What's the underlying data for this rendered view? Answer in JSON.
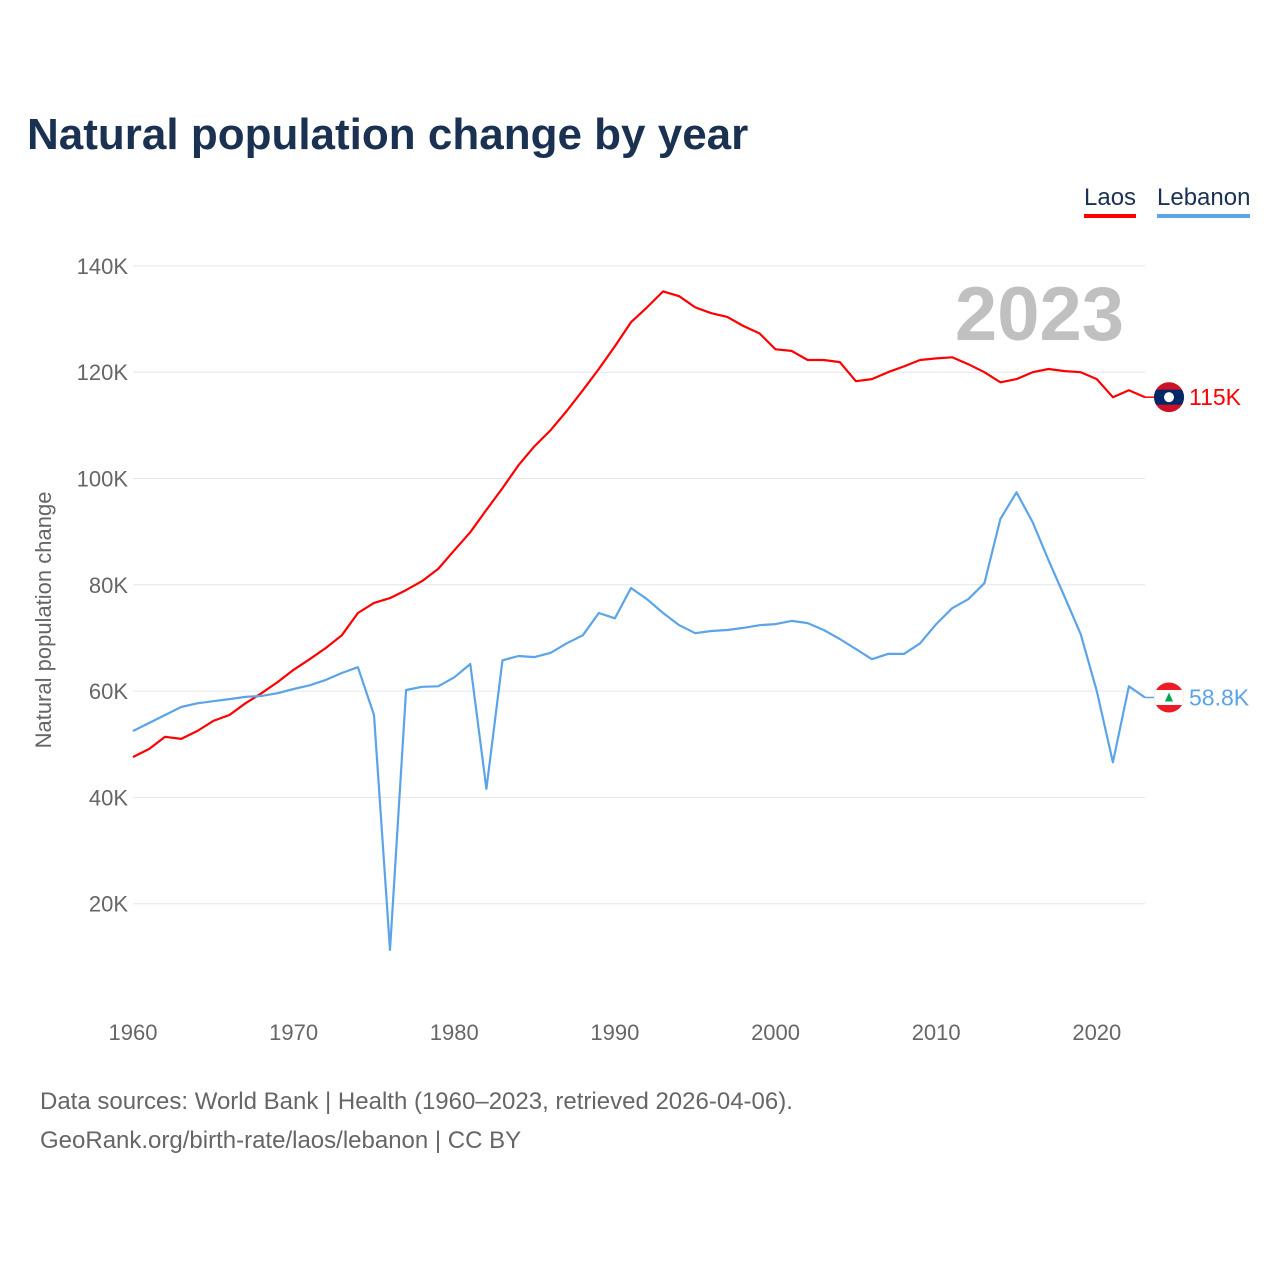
{
  "title": "Natural population change by year",
  "year_watermark": "2023",
  "footer": {
    "line1": "Data sources: World Bank | Health (1960–2023, retrieved 2026-04-06).",
    "line2": "GeoRank.org/birth-rate/laos/lebanon | CC BY"
  },
  "chart_data": {
    "type": "line",
    "title": "Natural population change by year",
    "xlabel": "",
    "ylabel": "Natural population change",
    "xlim": [
      1960,
      2023
    ],
    "ylim": [
      0,
      145000
    ],
    "grid": true,
    "legend_position": "top-right",
    "x_ticks": [
      1960,
      1970,
      1980,
      1990,
      2000,
      2010,
      2020
    ],
    "x_tick_labels": [
      "1960",
      "1970",
      "1980",
      "1990",
      "2000",
      "2010",
      "2020"
    ],
    "y_ticks": [
      20000,
      40000,
      60000,
      80000,
      100000,
      120000,
      140000
    ],
    "y_tick_labels": [
      "20K",
      "40K",
      "60K",
      "80K",
      "100K",
      "120K",
      "140K"
    ],
    "x_start": 1960,
    "series": [
      {
        "name": "Laos",
        "color": "#ff0000",
        "end_label": "115K",
        "flag": "laos-flag",
        "values": [
          47.6,
          49.1,
          51.4,
          51.0,
          52.5,
          54.4,
          55.5,
          57.7,
          59.6,
          61.7,
          64.0,
          66.0,
          68.1,
          70.5,
          74.7,
          76.6,
          77.5,
          79.0,
          80.7,
          83.0,
          86.5,
          89.9,
          94.1,
          98.2,
          102.5,
          106.1,
          109.1,
          112.7,
          116.6,
          120.6,
          124.9,
          129.4,
          132.2,
          135.2,
          134.3,
          132.2,
          131.1,
          130.4,
          128.7,
          127.3,
          124.3,
          124.0,
          122.3,
          122.3,
          121.9,
          118.3,
          118.7,
          120.0,
          121.1,
          122.3,
          122.6,
          122.8,
          121.5,
          120.0,
          118.1,
          118.7,
          120.0,
          120.6,
          120.2,
          120.0,
          118.7,
          115.3,
          116.6,
          115.3
        ]
      },
      {
        "name": "Lebanon",
        "color": "#5ba4e8",
        "end_label": "58.8K",
        "flag": "lebanon-flag",
        "values": [
          52.5,
          54.0,
          55.5,
          57.0,
          57.7,
          58.1,
          58.5,
          58.9,
          59.1,
          59.6,
          60.4,
          61.1,
          62.1,
          63.4,
          64.5,
          55.5,
          11.3,
          60.2,
          60.8,
          60.9,
          62.6,
          65.1,
          41.6,
          65.8,
          66.6,
          66.4,
          67.2,
          69.0,
          70.5,
          74.7,
          73.7,
          79.4,
          77.3,
          74.7,
          72.4,
          70.9,
          71.3,
          71.5,
          71.9,
          72.4,
          72.6,
          73.2,
          72.8,
          71.5,
          69.8,
          67.9,
          66.0,
          67.0,
          67.0,
          69.0,
          72.6,
          75.6,
          77.3,
          80.3,
          92.4,
          97.4,
          91.8,
          84.6,
          77.7,
          70.7,
          60.0,
          46.6,
          60.9,
          58.8
        ]
      }
    ]
  }
}
